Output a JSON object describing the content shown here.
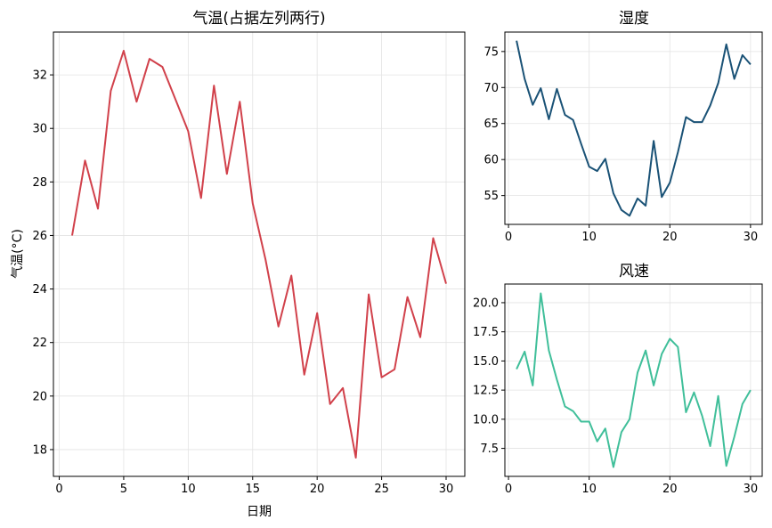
{
  "chart_data": [
    {
      "id": "temp",
      "type": "line",
      "title": "气温(占据左列两行)",
      "xlabel": "日期",
      "ylabel": "气温(°C)",
      "xlim": [
        -0.45,
        31.45
      ],
      "ylim": [
        17.0,
        33.6
      ],
      "xticks": [
        0,
        5,
        10,
        15,
        20,
        25,
        30
      ],
      "yticks": [
        18,
        20,
        22,
        24,
        26,
        28,
        30,
        32
      ],
      "grid": true,
      "color": "#d1414b",
      "x": [
        1,
        2,
        3,
        4,
        5,
        6,
        7,
        8,
        9,
        10,
        11,
        12,
        13,
        14,
        15,
        16,
        17,
        18,
        19,
        20,
        21,
        22,
        23,
        24,
        25,
        26,
        27,
        28,
        29,
        30
      ],
      "values": [
        26.0,
        28.8,
        27.0,
        31.4,
        32.9,
        31.0,
        32.6,
        32.3,
        31.1,
        29.9,
        27.4,
        31.6,
        28.3,
        31.0,
        27.2,
        25.1,
        22.6,
        24.5,
        20.8,
        23.1,
        19.7,
        20.3,
        17.7,
        23.8,
        20.7,
        21.0,
        23.7,
        22.2,
        25.9,
        24.2
      ]
    },
    {
      "id": "humidity",
      "type": "line",
      "title": "湿度",
      "xlabel": "",
      "ylabel": "",
      "xlim": [
        -0.45,
        31.45
      ],
      "ylim": [
        51.0,
        77.7
      ],
      "xticks": [
        0,
        10,
        20,
        30
      ],
      "yticks": [
        55,
        60,
        65,
        70,
        75
      ],
      "grid": true,
      "color": "#1a5276",
      "x": [
        1,
        2,
        3,
        4,
        5,
        6,
        7,
        8,
        9,
        10,
        11,
        12,
        13,
        14,
        15,
        16,
        17,
        18,
        19,
        20,
        21,
        22,
        23,
        24,
        25,
        26,
        27,
        28,
        29,
        30
      ],
      "values": [
        76.5,
        71.2,
        67.6,
        69.9,
        65.6,
        69.8,
        66.2,
        65.5,
        62.2,
        59.0,
        58.4,
        60.1,
        55.3,
        53.0,
        52.2,
        54.6,
        53.6,
        62.6,
        54.8,
        56.8,
        61.0,
        65.9,
        65.2,
        65.2,
        67.5,
        70.6,
        76.0,
        71.2,
        74.5,
        73.2
      ]
    },
    {
      "id": "wind",
      "type": "line",
      "title": "风速",
      "xlabel": "",
      "ylabel": "",
      "xlim": [
        -0.45,
        31.45
      ],
      "ylim": [
        5.1,
        21.6
      ],
      "xticks": [
        0,
        10,
        20,
        30
      ],
      "yticks": [
        7.5,
        10.0,
        12.5,
        15.0,
        17.5,
        20.0
      ],
      "tick_labels_y": [
        "7.5",
        "10.0",
        "12.5",
        "15.0",
        "17.5",
        "20.0"
      ],
      "grid": true,
      "color": "#40bf9a",
      "x": [
        1,
        2,
        3,
        4,
        5,
        6,
        7,
        8,
        9,
        10,
        11,
        12,
        13,
        14,
        15,
        16,
        17,
        18,
        19,
        20,
        21,
        22,
        23,
        24,
        25,
        26,
        27,
        28,
        29,
        30
      ],
      "values": [
        14.3,
        15.8,
        12.9,
        20.8,
        15.9,
        13.4,
        11.1,
        10.7,
        9.8,
        9.8,
        8.1,
        9.2,
        5.9,
        8.9,
        10.0,
        14.0,
        15.9,
        12.9,
        15.6,
        16.9,
        16.2,
        10.6,
        12.3,
        10.3,
        7.7,
        12.0,
        6.0,
        8.5,
        11.3,
        12.5
      ]
    }
  ]
}
